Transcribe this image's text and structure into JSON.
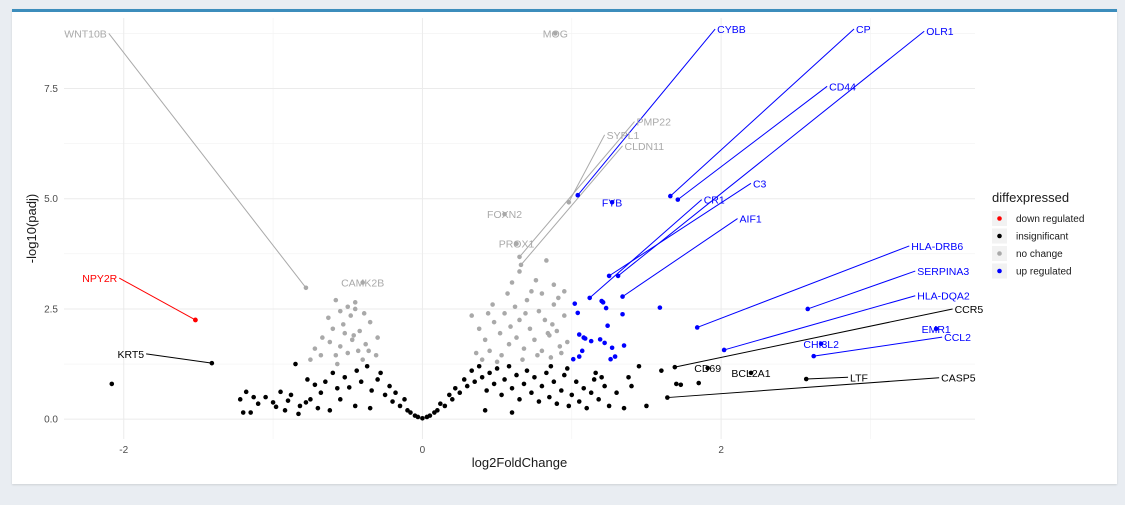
{
  "chart_data": {
    "type": "scatter",
    "title": "",
    "xlabel": "log2FoldChange",
    "ylabel": "-log10(padj)",
    "xlim": [
      -2.4,
      3.7
    ],
    "ylim": [
      -0.45,
      9.1
    ],
    "xticks": [
      -2,
      0,
      2
    ],
    "yticks": [
      0.0,
      2.5,
      5.0,
      7.5
    ],
    "ytick_labels": [
      "0.0",
      "2.5",
      "5.0",
      "7.5"
    ],
    "grid": true,
    "legend": {
      "title": "diffexpressed",
      "position": "right",
      "entries": [
        {
          "label": "down regulated",
          "color": "#ff0000"
        },
        {
          "label": "insignificant",
          "color": "#000000"
        },
        {
          "label": "no change",
          "color": "#a9a9a9"
        },
        {
          "label": "up regulated",
          "color": "#0000ff"
        }
      ]
    },
    "colors": {
      "down regulated": "#ff0000",
      "insignificant": "#000000",
      "no change": "#a9a9a9",
      "up regulated": "#0000ff"
    },
    "labeled_points": [
      {
        "gene": "WNT10B",
        "x": -0.78,
        "y": 2.98,
        "group": "no change",
        "label_x": -2.1,
        "label_y": 8.75
      },
      {
        "gene": "MOG",
        "x": 0.89,
        "y": 8.75,
        "group": "no change",
        "label_x": 0.89,
        "label_y": 8.75
      },
      {
        "gene": "CYBB",
        "x": 1.04,
        "y": 5.08,
        "group": "up regulated",
        "label_x": 1.96,
        "label_y": 8.85
      },
      {
        "gene": "CP",
        "x": 1.66,
        "y": 5.06,
        "group": "up regulated",
        "label_x": 2.89,
        "label_y": 8.85
      },
      {
        "gene": "OLR1",
        "x": 1.31,
        "y": 3.25,
        "group": "up regulated",
        "label_x": 3.36,
        "label_y": 8.8
      },
      {
        "gene": "CD44",
        "x": 1.71,
        "y": 4.98,
        "group": "up regulated",
        "label_x": 2.71,
        "label_y": 7.55
      },
      {
        "gene": "PMP22",
        "x": 0.65,
        "y": 3.68,
        "group": "no change",
        "label_x": 1.42,
        "label_y": 6.75
      },
      {
        "gene": "SYPL1",
        "x": 0.98,
        "y": 4.92,
        "group": "no change",
        "label_x": 1.22,
        "label_y": 6.45
      },
      {
        "gene": "CLDN11",
        "x": 0.66,
        "y": 3.5,
        "group": "no change",
        "label_x": 1.34,
        "label_y": 6.2
      },
      {
        "gene": "C3",
        "x": 1.25,
        "y": 3.25,
        "group": "up regulated",
        "label_x": 2.2,
        "label_y": 5.35
      },
      {
        "gene": "FYB",
        "x": 1.27,
        "y": 4.92,
        "group": "up regulated",
        "label_x": 1.27,
        "label_y": 4.92
      },
      {
        "gene": "CR1",
        "x": 1.12,
        "y": 2.75,
        "group": "up regulated",
        "label_x": 1.87,
        "label_y": 4.98
      },
      {
        "gene": "FOXN2",
        "x": 0.55,
        "y": 4.65,
        "group": "no change",
        "label_x": 0.55,
        "label_y": 4.65
      },
      {
        "gene": "AIF1",
        "x": 1.34,
        "y": 2.78,
        "group": "up regulated",
        "label_x": 2.11,
        "label_y": 4.55
      },
      {
        "gene": "PROX1",
        "x": 0.63,
        "y": 3.98,
        "group": "no change",
        "label_x": 0.63,
        "label_y": 3.98
      },
      {
        "gene": "CAMK2B",
        "x": -0.4,
        "y": 3.1,
        "group": "no change",
        "label_x": -0.4,
        "label_y": 3.1
      },
      {
        "gene": "NPY2R",
        "x": -1.52,
        "y": 2.25,
        "group": "down regulated",
        "label_x": -2.03,
        "label_y": 3.2
      },
      {
        "gene": "HLA-DRB6",
        "x": 1.84,
        "y": 2.08,
        "group": "up regulated",
        "label_x": 3.26,
        "label_y": 3.93
      },
      {
        "gene": "SERPINA3",
        "x": 2.58,
        "y": 2.5,
        "group": "up regulated",
        "label_x": 3.3,
        "label_y": 3.36
      },
      {
        "gene": "HLA-DQA2",
        "x": 2.02,
        "y": 1.57,
        "group": "up regulated",
        "label_x": 3.3,
        "label_y": 2.8
      },
      {
        "gene": "CCR5",
        "x": 1.69,
        "y": 1.18,
        "group": "insignificant",
        "label_x": 3.55,
        "label_y": 2.5
      },
      {
        "gene": "EMR1",
        "x": 3.44,
        "y": 2.05,
        "group": "up regulated",
        "label_x": 3.44,
        "label_y": 2.05
      },
      {
        "gene": "CCL2",
        "x": 2.62,
        "y": 1.43,
        "group": "up regulated",
        "label_x": 3.48,
        "label_y": 1.86
      },
      {
        "gene": "CHI3L2",
        "x": 2.67,
        "y": 1.71,
        "group": "up regulated",
        "label_x": 2.67,
        "label_y": 1.71
      },
      {
        "gene": "KRT5",
        "x": -1.41,
        "y": 1.27,
        "group": "insignificant",
        "label_x": -1.85,
        "label_y": 1.48
      },
      {
        "gene": "CD69",
        "x": 1.91,
        "y": 1.16,
        "group": "insignificant",
        "label_x": 1.91,
        "label_y": 1.16
      },
      {
        "gene": "BCL2A1",
        "x": 2.2,
        "y": 1.05,
        "group": "insignificant",
        "label_x": 2.2,
        "label_y": 1.05
      },
      {
        "gene": "LTF",
        "x": 2.57,
        "y": 0.91,
        "group": "insignificant",
        "label_x": 2.85,
        "label_y": 0.95
      },
      {
        "gene": "CASP5",
        "x": 1.64,
        "y": 0.49,
        "group": "insignificant",
        "label_x": 3.46,
        "label_y": 0.94
      }
    ],
    "points": {
      "down regulated": [
        [
          -1.52,
          2.25
        ]
      ],
      "up regulated": [
        [
          1.02,
          2.62
        ],
        [
          1.05,
          1.92
        ],
        [
          1.09,
          1.83
        ],
        [
          1.13,
          1.77
        ],
        [
          1.07,
          1.55
        ],
        [
          1.05,
          1.42
        ],
        [
          1.2,
          2.68
        ],
        [
          1.23,
          2.52
        ],
        [
          1.24,
          2.12
        ],
        [
          1.22,
          1.73
        ],
        [
          1.27,
          1.62
        ],
        [
          1.29,
          1.42
        ],
        [
          1.34,
          2.38
        ],
        [
          1.35,
          1.67
        ],
        [
          1.59,
          2.53
        ],
        [
          1.04,
          2.41
        ],
        [
          1.01,
          1.36
        ],
        [
          1.08,
          1.85
        ],
        [
          1.26,
          1.36
        ],
        [
          1.19,
          1.81
        ],
        [
          1.21,
          2.65
        ]
      ],
      "no change": [
        [
          -0.58,
          2.7
        ],
        [
          -0.55,
          2.45
        ],
        [
          -0.5,
          2.55
        ],
        [
          -0.48,
          2.35
        ],
        [
          -0.45,
          2.5
        ],
        [
          -0.6,
          2.05
        ],
        [
          -0.52,
          1.95
        ],
        [
          -0.47,
          1.8
        ],
        [
          -0.43,
          1.55
        ],
        [
          -0.55,
          1.65
        ],
        [
          -0.62,
          1.75
        ],
        [
          -0.39,
          2.4
        ],
        [
          -0.35,
          2.2
        ],
        [
          -0.3,
          1.85
        ],
        [
          -0.4,
          1.35
        ],
        [
          -0.5,
          1.5
        ],
        [
          -0.58,
          1.45
        ],
        [
          -0.67,
          1.85
        ],
        [
          -0.72,
          1.6
        ],
        [
          -0.75,
          1.35
        ],
        [
          -0.36,
          1.55
        ],
        [
          -0.46,
          1.9
        ],
        [
          -0.63,
          2.3
        ],
        [
          -0.38,
          1.7
        ],
        [
          -0.53,
          2.15
        ],
        [
          -0.42,
          2.0
        ],
        [
          -0.68,
          1.45
        ],
        [
          -0.57,
          1.25
        ],
        [
          -0.31,
          1.45
        ],
        [
          -0.45,
          2.65
        ],
        [
          0.33,
          2.35
        ],
        [
          0.38,
          2.05
        ],
        [
          0.42,
          1.8
        ],
        [
          0.45,
          1.55
        ],
        [
          0.48,
          2.2
        ],
        [
          0.52,
          1.95
        ],
        [
          0.55,
          2.4
        ],
        [
          0.58,
          1.7
        ],
        [
          0.62,
          2.55
        ],
        [
          0.65,
          2.25
        ],
        [
          0.68,
          1.6
        ],
        [
          0.7,
          2.7
        ],
        [
          0.72,
          2.05
        ],
        [
          0.75,
          1.8
        ],
        [
          0.78,
          2.45
        ],
        [
          0.8,
          1.55
        ],
        [
          0.82,
          2.25
        ],
        [
          0.85,
          1.9
        ],
        [
          0.88,
          3.05
        ],
        [
          0.9,
          2.0
        ],
        [
          0.92,
          1.65
        ],
        [
          0.95,
          2.35
        ],
        [
          0.97,
          1.75
        ],
        [
          0.6,
          3.1
        ],
        [
          0.65,
          3.35
        ],
        [
          0.57,
          2.85
        ],
        [
          0.83,
          3.6
        ],
        [
          0.88,
          2.6
        ],
        [
          0.8,
          2.85
        ],
        [
          0.93,
          1.5
        ],
        [
          0.36,
          1.5
        ],
        [
          0.4,
          1.35
        ],
        [
          0.5,
          1.3
        ],
        [
          0.47,
          2.6
        ],
        [
          0.53,
          1.45
        ],
        [
          0.67,
          1.35
        ],
        [
          0.73,
          2.9
        ],
        [
          0.77,
          1.45
        ],
        [
          0.86,
          1.4
        ],
        [
          0.91,
          2.75
        ],
        [
          0.44,
          2.4
        ],
        [
          0.63,
          1.85
        ],
        [
          0.59,
          2.1
        ],
        [
          0.87,
          2.15
        ],
        [
          0.76,
          3.15
        ],
        [
          0.69,
          2.4
        ],
        [
          0.95,
          2.9
        ],
        [
          0.84,
          1.95
        ]
      ],
      "insignificant": [
        [
          -2.08,
          0.8
        ],
        [
          -1.18,
          0.62
        ],
        [
          -1.2,
          0.15
        ],
        [
          -1.15,
          0.15
        ],
        [
          -1.05,
          0.5
        ],
        [
          -1.0,
          0.38
        ],
        [
          -0.98,
          0.28
        ],
        [
          -0.9,
          0.42
        ],
        [
          -0.88,
          0.55
        ],
        [
          -0.82,
          0.3
        ],
        [
          -0.77,
          0.9
        ],
        [
          -0.72,
          0.78
        ],
        [
          -0.75,
          0.45
        ],
        [
          -0.68,
          0.6
        ],
        [
          -0.65,
          0.85
        ],
        [
          -0.6,
          1.05
        ],
        [
          -0.57,
          0.7
        ],
        [
          -0.95,
          0.62
        ],
        [
          -1.1,
          0.35
        ],
        [
          -0.92,
          0.2
        ],
        [
          -0.85,
          1.25
        ],
        [
          -0.83,
          0.12
        ],
        [
          -0.7,
          0.25
        ],
        [
          -1.22,
          0.45
        ],
        [
          -1.13,
          0.5
        ],
        [
          -0.78,
          0.38
        ],
        [
          -0.62,
          0.2
        ],
        [
          -0.55,
          0.45
        ],
        [
          -0.52,
          0.95
        ],
        [
          -0.49,
          0.72
        ],
        [
          -0.44,
          1.1
        ],
        [
          -0.41,
          0.85
        ],
        [
          -0.37,
          1.2
        ],
        [
          -0.34,
          0.65
        ],
        [
          -0.3,
          0.9
        ],
        [
          -0.28,
          1.05
        ],
        [
          -0.25,
          0.55
        ],
        [
          -0.22,
          0.75
        ],
        [
          -0.2,
          0.4
        ],
        [
          -0.18,
          0.6
        ],
        [
          -0.15,
          0.3
        ],
        [
          -0.12,
          0.45
        ],
        [
          -0.1,
          0.2
        ],
        [
          -0.08,
          0.15
        ],
        [
          -0.05,
          0.08
        ],
        [
          -0.03,
          0.05
        ],
        [
          0.0,
          0.02
        ],
        [
          0.03,
          0.05
        ],
        [
          0.05,
          0.08
        ],
        [
          0.08,
          0.15
        ],
        [
          0.1,
          0.2
        ],
        [
          0.12,
          0.35
        ],
        [
          0.15,
          0.3
        ],
        [
          0.18,
          0.55
        ],
        [
          0.2,
          0.45
        ],
        [
          0.22,
          0.7
        ],
        [
          0.25,
          0.6
        ],
        [
          0.28,
          0.9
        ],
        [
          0.3,
          0.75
        ],
        [
          0.33,
          1.1
        ],
        [
          0.35,
          0.85
        ],
        [
          0.38,
          1.2
        ],
        [
          0.4,
          0.95
        ],
        [
          0.43,
          0.65
        ],
        [
          0.45,
          1.05
        ],
        [
          0.48,
          0.8
        ],
        [
          0.5,
          1.15
        ],
        [
          0.53,
          0.55
        ],
        [
          0.55,
          0.9
        ],
        [
          0.58,
          1.2
        ],
        [
          0.6,
          0.7
        ],
        [
          0.63,
          1.0
        ],
        [
          0.65,
          0.45
        ],
        [
          0.68,
          0.8
        ],
        [
          0.7,
          1.1
        ],
        [
          0.73,
          0.6
        ],
        [
          0.75,
          0.95
        ],
        [
          0.78,
          0.4
        ],
        [
          0.8,
          0.75
        ],
        [
          0.83,
          1.05
        ],
        [
          0.85,
          0.5
        ],
        [
          0.88,
          0.85
        ],
        [
          0.9,
          0.35
        ],
        [
          0.93,
          0.65
        ],
        [
          0.95,
          1.0
        ],
        [
          0.98,
          0.3
        ],
        [
          1.0,
          0.55
        ],
        [
          1.03,
          0.85
        ],
        [
          1.05,
          0.4
        ],
        [
          1.08,
          0.7
        ],
        [
          1.1,
          0.25
        ],
        [
          1.13,
          0.6
        ],
        [
          1.15,
          0.9
        ],
        [
          1.18,
          0.45
        ],
        [
          1.22,
          0.75
        ],
        [
          1.25,
          0.3
        ],
        [
          1.3,
          0.6
        ],
        [
          1.38,
          0.95
        ],
        [
          1.45,
          1.2
        ],
        [
          1.5,
          0.3
        ],
        [
          1.6,
          1.1
        ],
        [
          1.7,
          0.8
        ],
        [
          1.73,
          0.78
        ],
        [
          1.85,
          0.82
        ],
        [
          -0.45,
          0.3
        ],
        [
          -0.35,
          0.25
        ],
        [
          0.42,
          0.2
        ],
        [
          0.6,
          0.15
        ],
        [
          1.35,
          0.25
        ],
        [
          1.4,
          0.75
        ],
        [
          1.2,
          0.95
        ],
        [
          1.16,
          1.05
        ],
        [
          0.97,
          1.15
        ],
        [
          0.86,
          1.2
        ]
      ]
    }
  }
}
